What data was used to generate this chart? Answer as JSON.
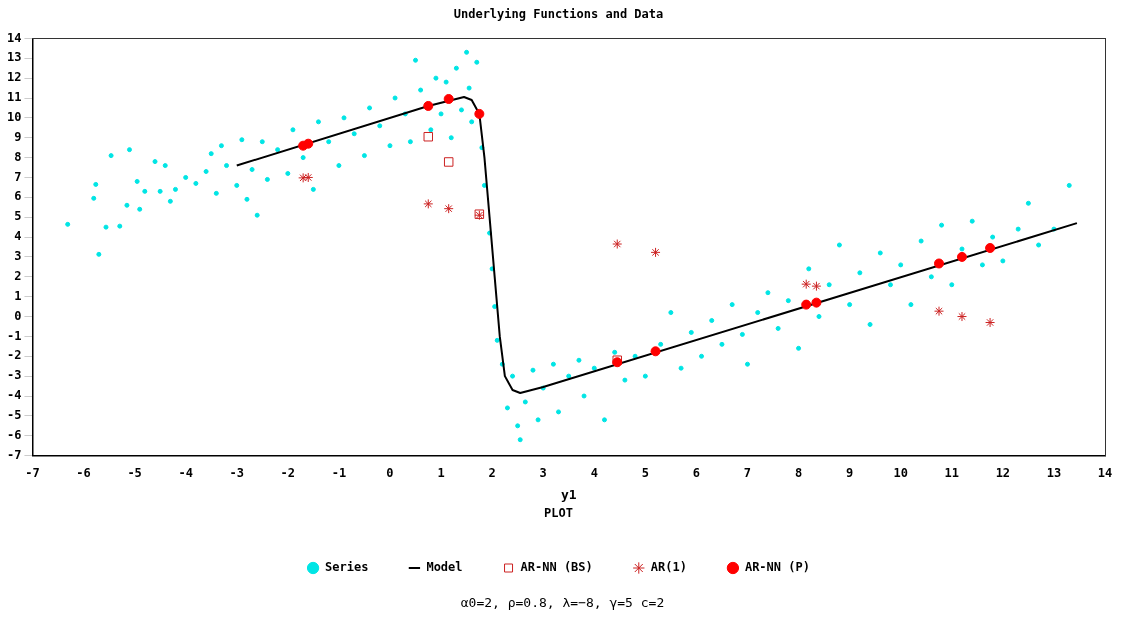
{
  "chart_data": {
    "type": "scatter",
    "title": "Underlying Functions and Data",
    "xlabel": "y1",
    "legend_title": "PLOT",
    "annotations": [
      "α0=2, ρ=0.8, λ=−8, γ=5 c=2"
    ],
    "xlim": [
      -7,
      14
    ],
    "xticks": [
      -7,
      -6,
      -5,
      -4,
      -3,
      -2,
      -1,
      0,
      1,
      2,
      3,
      4,
      5,
      6,
      7,
      8,
      9,
      10,
      11,
      12,
      13,
      14
    ],
    "ylim": [
      -7,
      14
    ],
    "yticks": [
      -7,
      -6,
      -5,
      -4,
      -3,
      -2,
      -1,
      0,
      1,
      2,
      3,
      4,
      5,
      6,
      7,
      8,
      9,
      10,
      11,
      12,
      13,
      14
    ],
    "grid": false,
    "legend": "bottom",
    "series": [
      {
        "name": "Series",
        "type": "scatter",
        "marker": "circle",
        "color": "#00e5e5",
        "x": [
          -6.31,
          -5.76,
          -5.8,
          -5.7,
          -5.56,
          -5.46,
          -5.29,
          -5.1,
          -5.15,
          -4.95,
          -4.9,
          -4.8,
          -4.6,
          -4.5,
          -4.4,
          -4.3,
          -4.2,
          -4.0,
          -3.8,
          -3.6,
          -3.5,
          -3.4,
          -3.3,
          -3.2,
          -3.0,
          -2.9,
          -2.8,
          -2.7,
          -2.6,
          -2.5,
          -2.4,
          -2.2,
          -2.0,
          -1.9,
          -1.7,
          -1.5,
          -1.4,
          -1.2,
          -1.0,
          -0.9,
          -0.7,
          -0.5,
          -0.4,
          -0.2,
          0,
          0.1,
          0.3,
          0.4,
          0.5,
          0.6,
          0.8,
          0.9,
          1.0,
          1.1,
          1.2,
          1.3,
          1.4,
          1.5,
          1.55,
          1.6,
          1.7,
          1.8,
          1.85,
          1.95,
          2.0,
          2.05,
          2.1,
          2.2,
          2.3,
          2.4,
          2.5,
          2.55,
          2.65,
          2.8,
          2.9,
          3.0,
          3.2,
          3.3,
          3.5,
          3.7,
          3.8,
          4.0,
          4.2,
          4.4,
          4.6,
          4.8,
          5.0,
          5.3,
          5.5,
          5.7,
          5.9,
          6.1,
          6.3,
          6.5,
          6.7,
          6.9,
          7.0,
          7.2,
          7.4,
          7.6,
          7.8,
          8.0,
          8.2,
          8.4,
          8.6,
          8.8,
          9.0,
          9.2,
          9.4,
          9.6,
          9.8,
          10.0,
          10.2,
          10.4,
          10.6,
          10.8,
          11.0,
          11.2,
          11.4,
          11.6,
          11.8,
          12.0,
          12.3,
          12.5,
          12.7,
          13.0,
          13.3
        ],
        "values": [
          4.64,
          6.65,
          5.95,
          3.13,
          4.5,
          8.1,
          4.55,
          8.4,
          5.6,
          6.8,
          5.4,
          6.3,
          7.8,
          6.3,
          7.6,
          5.8,
          6.4,
          7.0,
          6.7,
          7.3,
          8.2,
          6.2,
          8.6,
          7.6,
          6.6,
          8.9,
          5.9,
          7.4,
          5.1,
          8.8,
          6.9,
          8.4,
          7.2,
          9.4,
          8.0,
          6.4,
          9.8,
          8.8,
          7.6,
          10.0,
          9.2,
          8.1,
          10.5,
          9.6,
          8.6,
          11.0,
          10.2,
          8.8,
          12.9,
          11.4,
          9.4,
          12.0,
          10.2,
          11.8,
          9.0,
          12.5,
          10.4,
          13.3,
          11.5,
          9.8,
          12.8,
          8.5,
          6.6,
          4.2,
          2.4,
          0.5,
          -1.2,
          -2.4,
          -4.6,
          -3.0,
          -5.5,
          -6.2,
          -4.3,
          -2.7,
          -5.2,
          -3.6,
          -2.4,
          -4.8,
          -3.0,
          -2.2,
          -4.0,
          -2.6,
          -5.2,
          -1.8,
          -3.2,
          -2.0,
          -3.0,
          -1.4,
          0.2,
          -2.6,
          -0.8,
          -2.0,
          -0.2,
          -1.4,
          0.6,
          -0.9,
          -2.4,
          0.2,
          1.2,
          -0.6,
          0.8,
          -1.6,
          2.4,
          0.0,
          1.6,
          3.6,
          0.6,
          2.2,
          -0.4,
          3.2,
          1.6,
          2.6,
          0.6,
          3.8,
          2.0,
          4.6,
          1.6,
          3.4,
          4.8,
          2.6,
          4.0,
          2.8,
          4.4,
          5.7,
          3.6,
          4.4,
          6.6
        ]
      },
      {
        "name": "Model",
        "type": "line",
        "marker": "none",
        "line_style": "solid",
        "color": "#000000",
        "x": [
          -3,
          0.75,
          1.45,
          1.6,
          1.75,
          1.85,
          1.95,
          2.05,
          2.15,
          2.25,
          2.4,
          2.55,
          3,
          13.45
        ],
        "values": [
          7.6,
          10.6,
          11.05,
          10.9,
          10.2,
          8,
          5,
          2,
          -1,
          -3,
          -3.7,
          -3.85,
          -3.55,
          4.7
        ]
      },
      {
        "name": "AR-NN (BS)",
        "type": "scatter",
        "marker": "square",
        "color": "#cc2222",
        "x": [
          0.75,
          1.15,
          1.75,
          4.45
        ],
        "values": [
          9.05,
          7.78,
          5.15,
          -2.2
        ]
      },
      {
        "name": "AR(1)",
        "type": "scatter",
        "marker": "cross",
        "color": "#cc2222",
        "x": [
          -1.7,
          -1.6,
          0.75,
          1.15,
          1.75,
          4.45,
          5.2,
          8.15,
          8.35,
          10.75,
          11.2,
          11.75
        ],
        "values": [
          6.98,
          7.0,
          5.67,
          5.43,
          5.1,
          3.65,
          3.23,
          1.63,
          1.53,
          0.27,
          0.0,
          -0.3
        ]
      },
      {
        "name": "AR-NN (P)",
        "type": "scatter",
        "marker": "circle",
        "color": "#ff0000",
        "x": [
          -1.7,
          -1.6,
          0.75,
          1.15,
          1.75,
          4.45,
          5.2,
          8.15,
          8.35,
          10.75,
          11.2,
          11.75
        ],
        "values": [
          8.6,
          8.7,
          10.6,
          10.95,
          10.2,
          -2.3,
          -1.75,
          0.6,
          0.7,
          2.67,
          3.0,
          3.45
        ]
      }
    ]
  }
}
